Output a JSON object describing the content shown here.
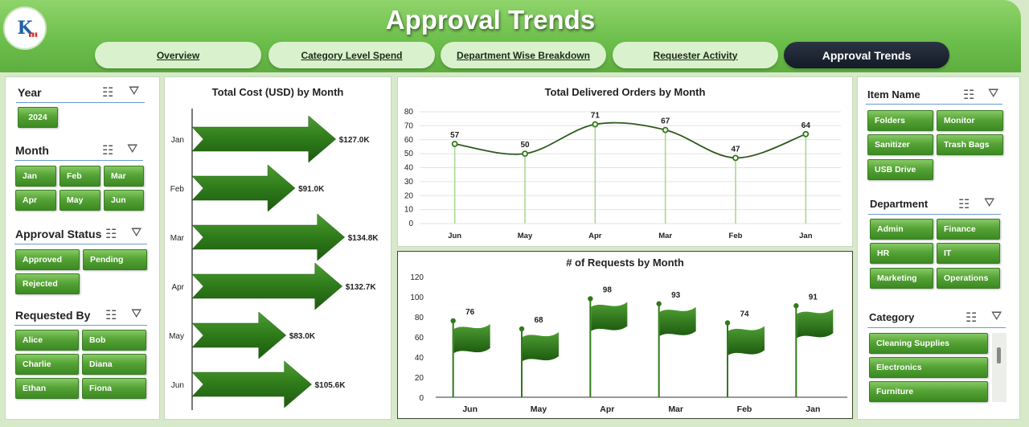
{
  "header": {
    "logo_text": "K",
    "title": "Approval Trends",
    "tabs": [
      "Overview",
      "Category Level Spend",
      "Department Wise Breakdown",
      "Requester Activity",
      "Approval Trends"
    ],
    "active_tab": "Approval Trends"
  },
  "slicers_left": {
    "year": {
      "title": "Year",
      "items": [
        "2024"
      ]
    },
    "month": {
      "title": "Month",
      "items": [
        "Jan",
        "Feb",
        "Mar",
        "Apr",
        "May",
        "Jun"
      ]
    },
    "approval_status": {
      "title": "Approval Status",
      "items": [
        "Approved",
        "Pending",
        "Rejected"
      ]
    },
    "requested_by": {
      "title": "Requested By",
      "items": [
        "Alice",
        "Bob",
        "Charlie",
        "Diana",
        "Ethan",
        "Fiona"
      ]
    }
  },
  "slicers_right": {
    "item_name": {
      "title": "Item Name",
      "items": [
        "Folders",
        "Monitor",
        "Sanitizer",
        "Trash Bags",
        "USB Drive"
      ]
    },
    "department": {
      "title": "Department",
      "items": [
        "Admin",
        "Finance",
        "HR",
        "IT",
        "Marketing",
        "Operations"
      ]
    },
    "category": {
      "title": "Category",
      "items": [
        "Cleaning Supplies",
        "Electronics",
        "Furniture"
      ]
    }
  },
  "icons": {
    "multi_select": "multi-select-icon",
    "clear_filter": "clear-filter-icon"
  },
  "colors": {
    "accent_green": "#3f8a27",
    "dark_green": "#1f5a12",
    "header_green": "#6bbd4a",
    "active_tab": "#1b2230"
  },
  "chart_data": [
    {
      "type": "bar",
      "title": "Total Cost (USD) by Month",
      "categories": [
        "Jan",
        "Feb",
        "Mar",
        "Apr",
        "May",
        "Jun"
      ],
      "values": [
        127.0,
        91.0,
        134.8,
        132.7,
        83.0,
        105.6
      ],
      "data_labels": [
        "$127.0K",
        "$91.0K",
        "$134.8K",
        "$132.7K",
        "$83.0K",
        "$105.6K"
      ],
      "orientation": "horizontal",
      "marker": "arrow"
    },
    {
      "type": "line",
      "title": "Total Delivered Orders by Month",
      "categories": [
        "Jun",
        "May",
        "Apr",
        "Mar",
        "Feb",
        "Jan"
      ],
      "values": [
        57,
        50,
        71,
        67,
        47,
        64
      ],
      "ylim": [
        0,
        80
      ],
      "yticks": [
        0,
        10,
        20,
        30,
        40,
        50,
        60,
        70,
        80
      ],
      "smooth": true
    },
    {
      "type": "bar",
      "title": "# of Requests  by Month",
      "categories": [
        "Jun",
        "May",
        "Apr",
        "Mar",
        "Feb",
        "Jan"
      ],
      "values": [
        76,
        68,
        98,
        93,
        74,
        91
      ],
      "ylim": [
        0,
        120
      ],
      "yticks": [
        0,
        20,
        40,
        60,
        80,
        100,
        120
      ],
      "marker": "flag"
    }
  ]
}
